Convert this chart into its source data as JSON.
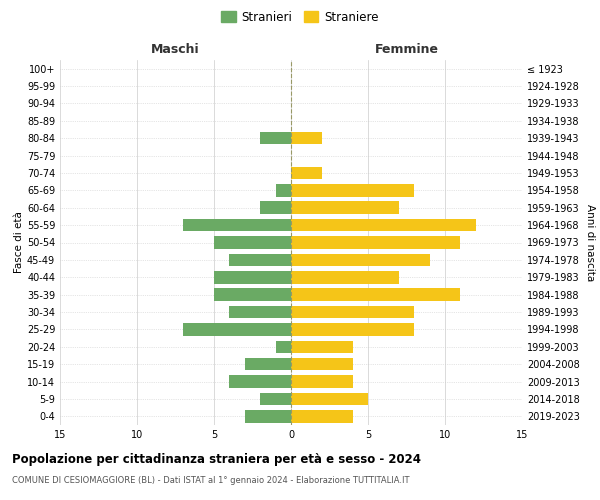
{
  "age_groups": [
    "0-4",
    "5-9",
    "10-14",
    "15-19",
    "20-24",
    "25-29",
    "30-34",
    "35-39",
    "40-44",
    "45-49",
    "50-54",
    "55-59",
    "60-64",
    "65-69",
    "70-74",
    "75-79",
    "80-84",
    "85-89",
    "90-94",
    "95-99",
    "100+"
  ],
  "birth_years": [
    "2019-2023",
    "2014-2018",
    "2009-2013",
    "2004-2008",
    "1999-2003",
    "1994-1998",
    "1989-1993",
    "1984-1988",
    "1979-1983",
    "1974-1978",
    "1969-1973",
    "1964-1968",
    "1959-1963",
    "1954-1958",
    "1949-1953",
    "1944-1948",
    "1939-1943",
    "1934-1938",
    "1929-1933",
    "1924-1928",
    "≤ 1923"
  ],
  "males": [
    3,
    2,
    4,
    3,
    1,
    7,
    4,
    5,
    5,
    4,
    5,
    7,
    2,
    1,
    0,
    0,
    2,
    0,
    0,
    0,
    0
  ],
  "females": [
    4,
    5,
    4,
    4,
    4,
    8,
    8,
    11,
    7,
    9,
    11,
    12,
    7,
    8,
    2,
    0,
    2,
    0,
    0,
    0,
    0
  ],
  "male_color": "#6aaa64",
  "female_color": "#f5c518",
  "male_label": "Stranieri",
  "female_label": "Straniere",
  "title": "Popolazione per cittadinanza straniera per età e sesso - 2024",
  "subtitle": "COMUNE DI CESIOMAGGIORE (BL) - Dati ISTAT al 1° gennaio 2024 - Elaborazione TUTTITALIA.IT",
  "xlabel_left": "Maschi",
  "xlabel_right": "Femmine",
  "ylabel": "Fasce di età",
  "ylabel_right": "Anni di nascita",
  "xlim": 15,
  "background_color": "#ffffff",
  "grid_color": "#cccccc",
  "centerline_color": "#999966"
}
